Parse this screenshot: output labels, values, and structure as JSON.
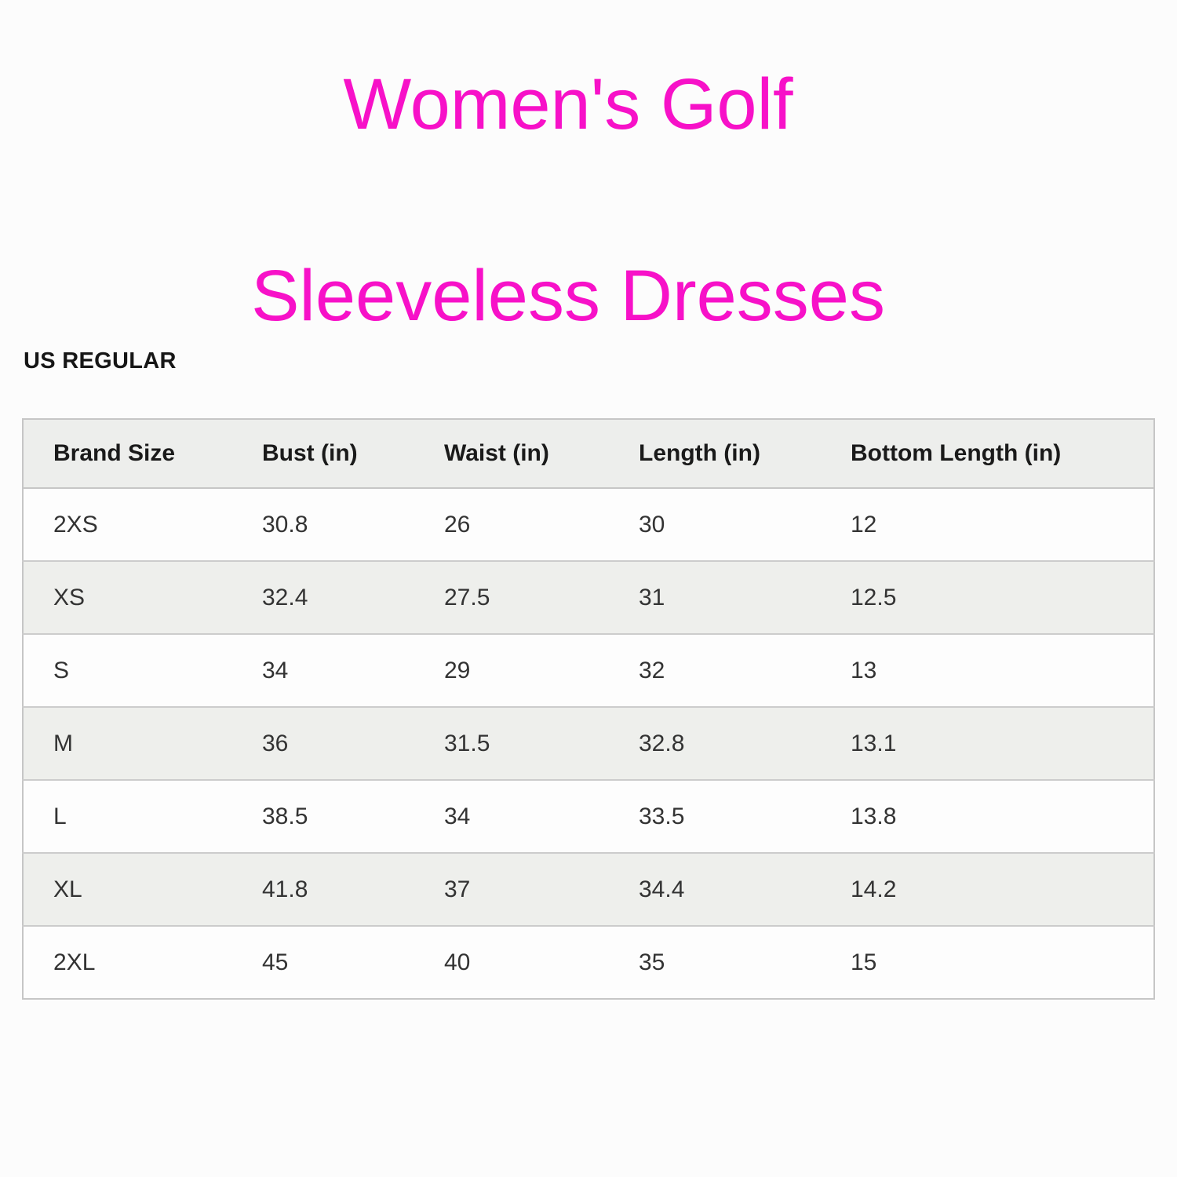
{
  "title": {
    "line1": "Women's Golf",
    "line2": "Sleeveless Dresses"
  },
  "section_label": "US REGULAR",
  "colors": {
    "title_text": "#f711c8",
    "header_bg": "#edeeec",
    "stripe_bg": "#eeefec",
    "table_border": "#c6c6c6",
    "body_text": "#333333"
  },
  "chart_data": {
    "type": "table",
    "title": "Women's Golf Sleeveless Dresses",
    "subtitle": "US REGULAR",
    "columns": [
      "Brand Size",
      "Bust (in)",
      "Waist (in)",
      "Length (in)",
      "Bottom Length (in)"
    ],
    "rows": [
      [
        "2XS",
        "30.8",
        "26",
        "30",
        "12"
      ],
      [
        "XS",
        "32.4",
        "27.5",
        "31",
        "12.5"
      ],
      [
        "S",
        "34",
        "29",
        "32",
        "13"
      ],
      [
        "M",
        "36",
        "31.5",
        "32.8",
        "13.1"
      ],
      [
        "L",
        "38.5",
        "34",
        "33.5",
        "13.8"
      ],
      [
        "XL",
        "41.8",
        "37",
        "34.4",
        "14.2"
      ],
      [
        "2XL",
        "45",
        "40",
        "35",
        "15"
      ]
    ]
  }
}
